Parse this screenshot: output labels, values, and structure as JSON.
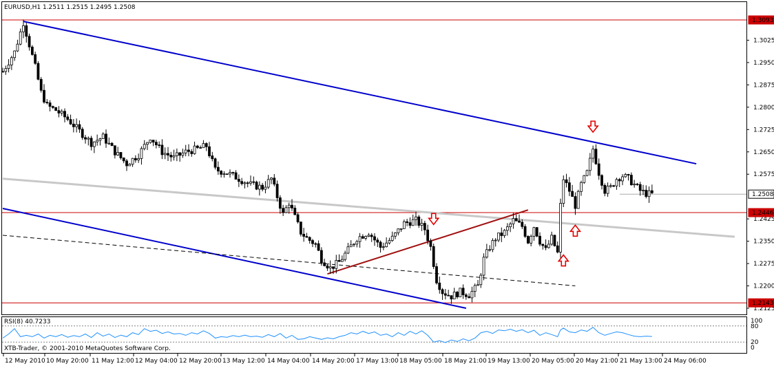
{
  "window": {
    "symbol_info": "EURUSD,H1  1.2511 1.2515 1.2495 1.2508",
    "footer_text": "XTB-Trader, © 2001-2010 MetaQuotes Software Corp."
  },
  "colors": {
    "background": "#ffffff",
    "candle": "#000000",
    "channel_line": "#0000cc",
    "support_line": "#a01010",
    "horizontal_level": "#cc0000",
    "regression_line": "#c8c8c8",
    "dashed_line": "#000000",
    "rsi_line": "#1e90ff",
    "arrow": "#e00000"
  },
  "chart_data": [
    {
      "type": "candlestick",
      "title": "EURUSD,H1",
      "ylim": [
        1.2125,
        1.3093
      ],
      "y_ticks": [
        "1.3025",
        "1.2950",
        "1.2875",
        "1.2800",
        "1.2725",
        "1.2650",
        "1.2575",
        "1.2425",
        "1.2350",
        "1.2275",
        "1.2200",
        "1.2125"
      ],
      "price_labels": [
        {
          "label": "1.3093",
          "value": 1.3093,
          "kind": "level"
        },
        {
          "label": "1.2508",
          "value": 1.2508,
          "kind": "current"
        },
        {
          "label": "1.2446",
          "value": 1.2446,
          "kind": "level"
        },
        {
          "label": "1.2143",
          "value": 1.2143,
          "kind": "level"
        }
      ],
      "x_ticks": [
        "12 May 2010",
        "10 May 20:00",
        "11 May 12:00",
        "12 May 04:00",
        "12 May 20:00",
        "13 May 12:00",
        "14 May 04:00",
        "14 May 20:00",
        "17 May 13:00",
        "18 May 05:00",
        "18 May 21:00",
        "19 May 13:00",
        "20 May 05:00",
        "20 May 21:00",
        "21 May 13:00",
        "24 May 06:00"
      ],
      "close_path": [
        [
          0,
          1.292
        ],
        [
          4,
          1.2985
        ],
        [
          7,
          1.3085
        ],
        [
          9,
          1.301
        ],
        [
          11,
          1.2935
        ],
        [
          13,
          1.285
        ],
        [
          15,
          1.2805
        ],
        [
          18,
          1.279
        ],
        [
          22,
          1.276
        ],
        [
          26,
          1.272
        ],
        [
          30,
          1.268
        ],
        [
          34,
          1.27
        ],
        [
          38,
          1.265
        ],
        [
          42,
          1.261
        ],
        [
          46,
          1.264
        ],
        [
          50,
          1.27
        ],
        [
          54,
          1.265
        ],
        [
          58,
          1.263
        ],
        [
          62,
          1.265
        ],
        [
          66,
          1.266
        ],
        [
          69,
          1.267
        ],
        [
          72,
          1.259
        ],
        [
          76,
          1.258
        ],
        [
          80,
          1.256
        ],
        [
          84,
          1.254
        ],
        [
          88,
          1.253
        ],
        [
          91,
          1.256
        ],
        [
          93,
          1.25
        ],
        [
          95,
          1.244
        ],
        [
          97,
          1.248
        ],
        [
          99,
          1.243
        ],
        [
          101,
          1.238
        ],
        [
          103,
          1.236
        ],
        [
          106,
          1.234
        ],
        [
          108,
          1.229
        ],
        [
          111,
          1.226
        ],
        [
          114,
          1.228
        ],
        [
          117,
          1.232
        ],
        [
          120,
          1.236
        ],
        [
          124,
          1.238
        ],
        [
          128,
          1.233
        ],
        [
          132,
          1.236
        ],
        [
          136,
          1.241
        ],
        [
          140,
          1.242
        ],
        [
          143,
          1.239
        ],
        [
          145,
          1.233
        ],
        [
          147,
          1.222
        ],
        [
          149,
          1.218
        ],
        [
          152,
          1.2165
        ],
        [
          155,
          1.218
        ],
        [
          158,
          1.217
        ],
        [
          161,
          1.22
        ],
        [
          163,
          1.229
        ],
        [
          165,
          1.233
        ],
        [
          167,
          1.236
        ],
        [
          170,
          1.238
        ],
        [
          173,
          1.242
        ],
        [
          176,
          1.24
        ],
        [
          178,
          1.235
        ],
        [
          180,
          1.24
        ],
        [
          182,
          1.235
        ],
        [
          184,
          1.232
        ],
        [
          186,
          1.236
        ],
        [
          188,
          1.231
        ],
        [
          189,
          1.247
        ],
        [
          190,
          1.256
        ],
        [
          192,
          1.252
        ],
        [
          194,
          1.247
        ],
        [
          196,
          1.254
        ],
        [
          198,
          1.258
        ],
        [
          200,
          1.266
        ],
        [
          202,
          1.258
        ],
        [
          204,
          1.252
        ],
        [
          206,
          1.253
        ],
        [
          208,
          1.256
        ],
        [
          210,
          1.257
        ],
        [
          212,
          1.256
        ],
        [
          214,
          1.254
        ],
        [
          216,
          1.252
        ],
        [
          218,
          1.251
        ],
        [
          220,
          1.2508
        ]
      ],
      "trend_lines": [
        {
          "name": "upper-channel",
          "style": "blue",
          "from": [
            7,
            1.3088
          ],
          "to": [
            235,
            1.261
          ]
        },
        {
          "name": "lower-channel",
          "style": "blue",
          "from": [
            0,
            1.246
          ],
          "to": [
            157,
            1.2125
          ]
        },
        {
          "name": "regression",
          "style": "gray",
          "from": [
            0,
            1.256
          ],
          "to": [
            248,
            1.2365
          ]
        },
        {
          "name": "dashed-support",
          "style": "dashed",
          "from": [
            0,
            1.237
          ],
          "to": [
            194,
            1.22
          ]
        },
        {
          "name": "rising-support",
          "style": "red",
          "from": [
            110,
            1.224
          ],
          "to": [
            178,
            1.2455
          ]
        }
      ],
      "arrows": [
        {
          "direction": "down",
          "x": 146,
          "y": 1.242
        },
        {
          "direction": "down",
          "x": 200,
          "y": 1.273
        },
        {
          "direction": "up",
          "x": 194,
          "y": 1.239
        },
        {
          "direction": "up",
          "x": 190,
          "y": 1.229
        }
      ]
    },
    {
      "type": "line",
      "title": "RSI(8) 40.7233",
      "ylim": [
        0,
        100
      ],
      "y_ticks": [
        "100",
        "80",
        "20",
        "0"
      ],
      "levels": [
        80,
        20
      ],
      "values": [
        [
          0,
          35
        ],
        [
          2,
          50
        ],
        [
          4,
          70
        ],
        [
          6,
          40
        ],
        [
          8,
          45
        ],
        [
          10,
          40
        ],
        [
          12,
          50
        ],
        [
          14,
          35
        ],
        [
          16,
          45
        ],
        [
          18,
          40
        ],
        [
          20,
          48
        ],
        [
          22,
          38
        ],
        [
          24,
          44
        ],
        [
          26,
          40
        ],
        [
          28,
          50
        ],
        [
          30,
          37
        ],
        [
          32,
          55
        ],
        [
          34,
          42
        ],
        [
          36,
          50
        ],
        [
          38,
          37
        ],
        [
          40,
          46
        ],
        [
          42,
          40
        ],
        [
          44,
          55
        ],
        [
          46,
          48
        ],
        [
          48,
          70
        ],
        [
          50,
          60
        ],
        [
          52,
          64
        ],
        [
          54,
          52
        ],
        [
          56,
          58
        ],
        [
          58,
          50
        ],
        [
          60,
          52
        ],
        [
          62,
          45
        ],
        [
          64,
          55
        ],
        [
          66,
          50
        ],
        [
          68,
          62
        ],
        [
          70,
          52
        ],
        [
          72,
          35
        ],
        [
          74,
          40
        ],
        [
          76,
          38
        ],
        [
          78,
          44
        ],
        [
          80,
          40
        ],
        [
          82,
          46
        ],
        [
          84,
          40
        ],
        [
          86,
          42
        ],
        [
          88,
          38
        ],
        [
          90,
          48
        ],
        [
          92,
          40
        ],
        [
          94,
          52
        ],
        [
          96,
          35
        ],
        [
          98,
          45
        ],
        [
          100,
          30
        ],
        [
          102,
          32
        ],
        [
          104,
          40
        ],
        [
          106,
          35
        ],
        [
          108,
          30
        ],
        [
          110,
          36
        ],
        [
          112,
          32
        ],
        [
          114,
          40
        ],
        [
          116,
          45
        ],
        [
          118,
          55
        ],
        [
          120,
          50
        ],
        [
          122,
          60
        ],
        [
          124,
          52
        ],
        [
          126,
          58
        ],
        [
          128,
          45
        ],
        [
          130,
          50
        ],
        [
          132,
          40
        ],
        [
          134,
          55
        ],
        [
          136,
          45
        ],
        [
          138,
          60
        ],
        [
          140,
          50
        ],
        [
          142,
          62
        ],
        [
          144,
          45
        ],
        [
          146,
          20
        ],
        [
          148,
          25
        ],
        [
          150,
          18
        ],
        [
          152,
          28
        ],
        [
          154,
          22
        ],
        [
          156,
          32
        ],
        [
          158,
          25
        ],
        [
          160,
          35
        ],
        [
          162,
          55
        ],
        [
          164,
          60
        ],
        [
          166,
          52
        ],
        [
          168,
          65
        ],
        [
          170,
          62
        ],
        [
          172,
          68
        ],
        [
          174,
          60
        ],
        [
          176,
          66
        ],
        [
          178,
          55
        ],
        [
          180,
          64
        ],
        [
          182,
          45
        ],
        [
          184,
          55
        ],
        [
          186,
          48
        ],
        [
          188,
          40
        ],
        [
          189,
          65
        ],
        [
          190,
          72
        ],
        [
          192,
          58
        ],
        [
          194,
          55
        ],
        [
          196,
          65
        ],
        [
          198,
          60
        ],
        [
          200,
          75
        ],
        [
          202,
          55
        ],
        [
          204,
          45
        ],
        [
          206,
          52
        ],
        [
          208,
          58
        ],
        [
          210,
          55
        ],
        [
          212,
          48
        ],
        [
          214,
          42
        ],
        [
          216,
          40
        ],
        [
          218,
          42
        ],
        [
          220,
          40.7
        ]
      ]
    }
  ]
}
